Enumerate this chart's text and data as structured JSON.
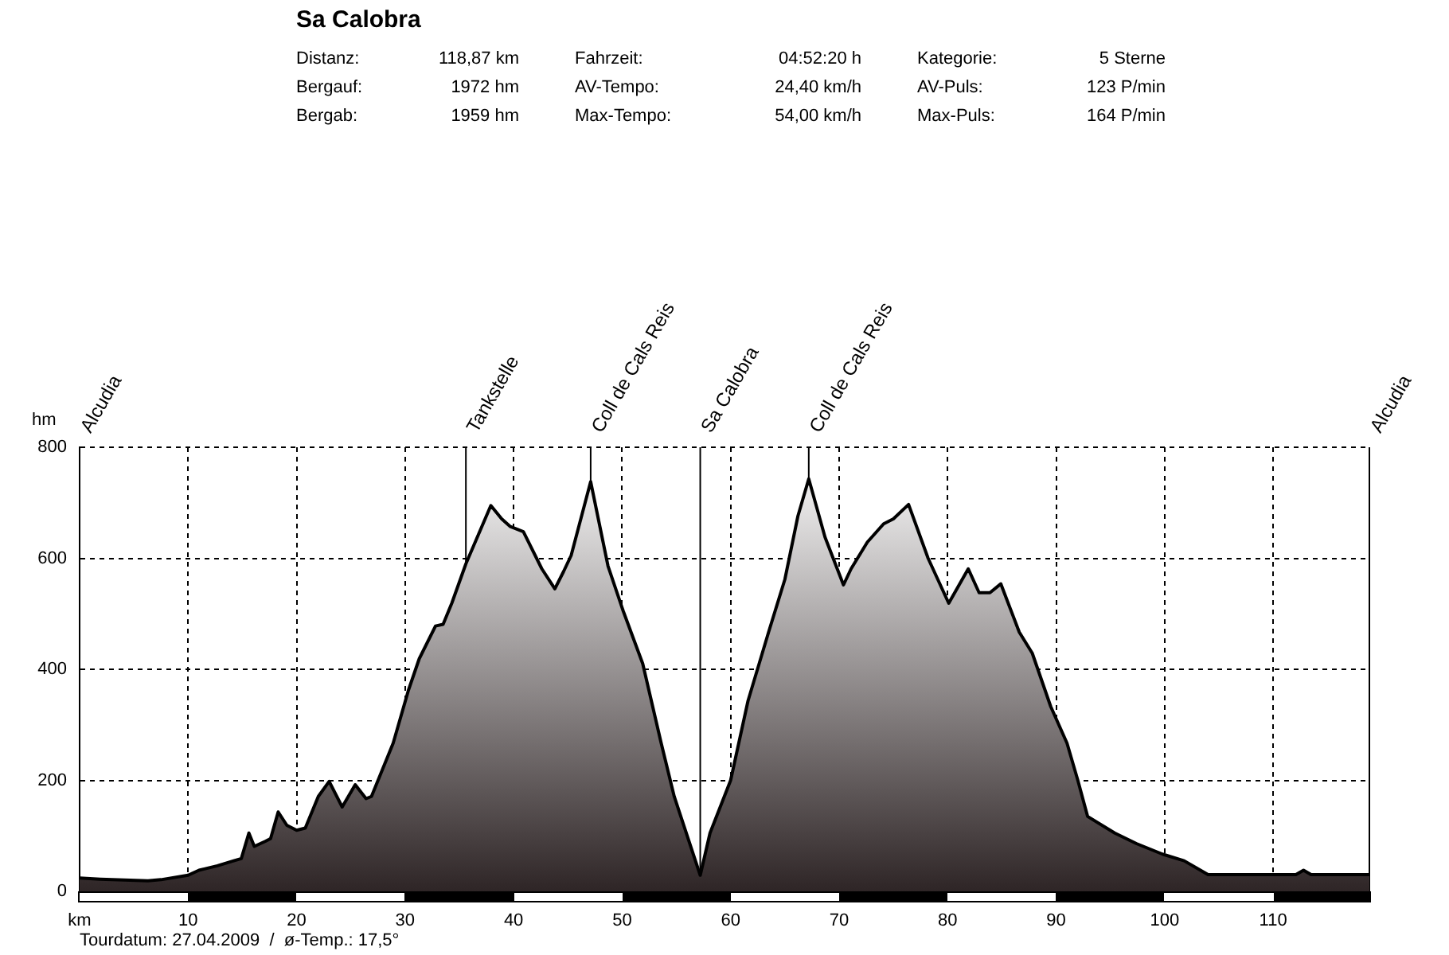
{
  "chart_data": {
    "type": "area",
    "title": "Sa Calobra",
    "ylabel": "hm",
    "annotations": [
      "Distanz:",
      "118,87 km",
      "Fahrzeit:",
      "04:52:20 h",
      "Kategorie:",
      "5 Sterne",
      "Bergauf:",
      "1972 hm",
      "AV-Tempo:",
      "24,40 km/h",
      "AV-Puls:",
      "123 P/min",
      "Bergab:",
      "1959 hm",
      "Max-Tempo:",
      "54,00 km/h",
      "Max-Puls:",
      "164 P/min",
      "Tourdatum: 27.04.2009  /  ø-Temp.: 17,5°"
    ],
    "series": [
      {
        "color": "#000000",
        "x": [
          0,
          1.9,
          6.3,
          7.5,
          10,
          11,
          12.7,
          14.2,
          14.9,
          15.6,
          16.1,
          17.1,
          17.6,
          18.3,
          19.1,
          20,
          20.8,
          22,
          23,
          24.2,
          25.4,
          26.4,
          26.9,
          28.9,
          30.3,
          31.3,
          32.8,
          33.5,
          34.3,
          35.6,
          37.9,
          38.9,
          39.7,
          40.9,
          42.6,
          43.8,
          44.6,
          45.3,
          47.1,
          48.7,
          50.1,
          51.9,
          53.6,
          54.8,
          57.2,
          58.1,
          60,
          61.6,
          63.5,
          65,
          66.2,
          67.2,
          68.7,
          70.4,
          71.1,
          72.6,
          74.1,
          75,
          76.4,
          78.2,
          80.1,
          81.9,
          82.9,
          83.9,
          84.9,
          86.6,
          87.8,
          89.5,
          91,
          92,
          92.9,
          95.4,
          97.4,
          99.8,
          101.8,
          104,
          112.1,
          112.8,
          113.5,
          118.87
        ],
        "values": [
          24,
          22,
          19,
          21,
          29,
          38,
          46,
          55,
          59,
          105,
          81,
          90,
          95,
          143,
          119,
          110,
          114,
          171,
          198,
          152,
          192,
          167,
          171,
          267,
          362,
          419,
          478,
          481,
          519,
          590,
          695,
          671,
          657,
          648,
          581,
          545,
          576,
          605,
          738,
          586,
          505,
          410,
          267,
          171,
          29,
          105,
          200,
          343,
          467,
          562,
          676,
          743,
          638,
          552,
          581,
          629,
          662,
          671,
          697,
          600,
          519,
          581,
          538,
          538,
          554,
          467,
          429,
          333,
          267,
          200,
          135,
          105,
          86,
          67,
          55,
          30,
          30,
          38,
          30,
          30
        ]
      }
    ],
    "xlim": [
      0,
      118.87
    ],
    "xticks": [
      {
        "value": 0,
        "label": "km"
      },
      10,
      20,
      30,
      40,
      50,
      60,
      70,
      80,
      90,
      100,
      110
    ],
    "ylim": [
      0,
      800
    ],
    "yticks": [
      0,
      200,
      400,
      600,
      800
    ],
    "grid": true,
    "marker": "none",
    "line_style": "solid",
    "legend": false,
    "ref_lines": [
      {
        "axis": "x",
        "value": 0,
        "label": "Alcudia"
      },
      {
        "axis": "x",
        "value": 35.6,
        "label": "Tankstelle"
      },
      {
        "axis": "x",
        "value": 47.1,
        "label": "Coll de Cals Reis"
      },
      {
        "axis": "x",
        "value": 57.2,
        "label": "Sa Calobra"
      },
      {
        "axis": "x",
        "value": 67.2,
        "label": "Coll de Cals Reis"
      },
      {
        "axis": "x",
        "value": 118.87,
        "label": "Alcudia"
      }
    ]
  }
}
